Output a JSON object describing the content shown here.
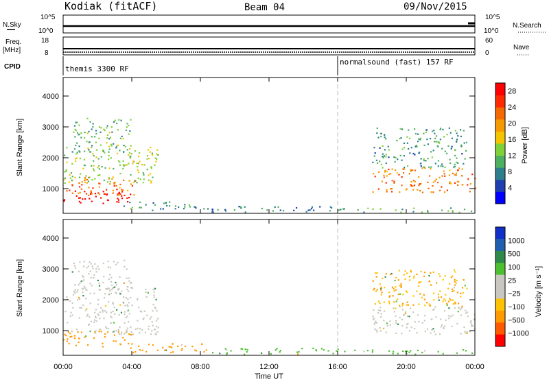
{
  "header": {
    "station": "Kodiak (fitACF)",
    "beam": "Beam 04",
    "date": "09/Nov/2015"
  },
  "strip_labels": {
    "nsky": "N.Sky",
    "nsky_ticks": [
      "10^5",
      "10^0"
    ],
    "nsearch": "N.Search",
    "nsearch_ticks": [
      "10^5",
      "10^0"
    ],
    "freq": "Freq.",
    "freq_unit": "[MHz]",
    "freq_ticks": [
      "18",
      "8"
    ],
    "nave": "Nave",
    "nave_ticks": [
      "60",
      "0"
    ],
    "cpid": "CPID",
    "cpid_segments": [
      {
        "label": "themis 3300 RF",
        "start_hour": 0
      },
      {
        "label": "normalsound (fast) 157 RF",
        "start_hour": 16
      }
    ]
  },
  "colors": {
    "power": [
      "#0000ff",
      "#1f3fb0",
      "#2e7f8e",
      "#4cb060",
      "#7fd13a",
      "#f5c400",
      "#f59a00",
      "#f56a00",
      "#ff2a00",
      "#ff0000"
    ],
    "velocity": [
      "#ff0000",
      "#ff5a00",
      "#ff9a00",
      "#ffc200",
      "#c8c8c0",
      "#c8c8c0",
      "#4cc030",
      "#2e8a4a",
      "#1f5fb0",
      "#1030c8"
    ]
  },
  "chart_data": [
    {
      "type": "heatmap",
      "panel": "power",
      "ylabel": "Slant Range [km]",
      "yticks": [
        1000,
        2000,
        3000,
        4000
      ],
      "ylim": [
        200,
        4600
      ],
      "xlim_hours": [
        0,
        24
      ],
      "colorbar_label": "Power [dB]",
      "colorbar_ticks": [
        4,
        8,
        12,
        16,
        20,
        24,
        28
      ],
      "colorbar_range": [
        0,
        30
      ],
      "regions": [
        {
          "h0": 0.0,
          "h1": 3.9,
          "r0": 500,
          "r1": 1000,
          "level": 28
        },
        {
          "h0": 0.0,
          "h1": 4.2,
          "r0": 800,
          "r1": 1400,
          "level": 20
        },
        {
          "h0": 0.0,
          "h1": 5.5,
          "r0": 1200,
          "r1": 2400,
          "level": 12
        },
        {
          "h0": 0.5,
          "h1": 4.0,
          "r0": 2200,
          "r1": 3300,
          "level": 10
        },
        {
          "h0": 3.5,
          "h1": 8.0,
          "r0": 300,
          "r1": 600,
          "level": 8
        },
        {
          "h0": 8.0,
          "h1": 16.0,
          "r0": 250,
          "r1": 450,
          "level": 6
        },
        {
          "h0": 16.0,
          "h1": 24.0,
          "r0": 250,
          "r1": 400,
          "level": 10
        },
        {
          "h0": 18.0,
          "h1": 24.0,
          "r0": 900,
          "r1": 1700,
          "level": 20
        },
        {
          "h0": 18.0,
          "h1": 23.5,
          "r0": 1700,
          "r1": 3000,
          "level": 8
        }
      ]
    },
    {
      "type": "heatmap",
      "panel": "velocity",
      "ylabel": "Slant Range [km]",
      "yticks": [
        1000,
        2000,
        3000,
        4000
      ],
      "ylim": [
        200,
        4600
      ],
      "xlim_hours": [
        0,
        24
      ],
      "xticks": [
        "00:00",
        "04:00",
        "08:00",
        "12:00",
        "16:00",
        "20:00",
        "00:00"
      ],
      "xlabel": "Time UT",
      "colorbar_label": "Velocity [m s⁻¹]",
      "colorbar_ticks": [
        "1000",
        "500",
        "100",
        "25",
        "−25",
        "−100",
        "−500",
        "−1000"
      ],
      "regions": [
        {
          "h0": 0.0,
          "h1": 4.0,
          "r0": 500,
          "r1": 1000,
          "level": "-300"
        },
        {
          "h0": 0.0,
          "h1": 5.5,
          "r0": 900,
          "r1": 2400,
          "level": "0"
        },
        {
          "h0": 0.5,
          "h1": 4.0,
          "r0": 2200,
          "r1": 3300,
          "level": "0"
        },
        {
          "h0": 3.5,
          "h1": 8.5,
          "r0": 300,
          "r1": 600,
          "level": "-150"
        },
        {
          "h0": 8.5,
          "h1": 16.0,
          "r0": 250,
          "r1": 450,
          "level": "50"
        },
        {
          "h0": 16.0,
          "h1": 24.0,
          "r0": 250,
          "r1": 400,
          "level": "50"
        },
        {
          "h0": 18.0,
          "h1": 24.0,
          "r0": 900,
          "r1": 1800,
          "level": "0"
        },
        {
          "h0": 18.0,
          "h1": 23.5,
          "r0": 1800,
          "r1": 3000,
          "level": "-100"
        }
      ]
    }
  ]
}
